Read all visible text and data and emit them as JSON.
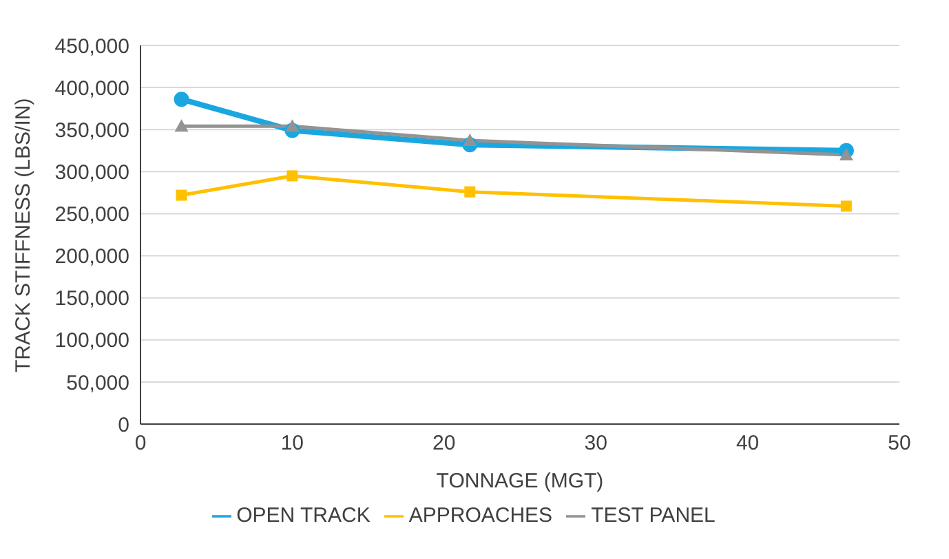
{
  "chart_data": {
    "type": "line",
    "xlabel": "TONNAGE (MGT)",
    "ylabel": "TRACK STIFFNESS (LBS/IN)",
    "x": [
      2.7,
      10,
      21.7,
      46.5
    ],
    "series": [
      {
        "name": "OPEN TRACK",
        "color": "#1aa7e0",
        "marker": "circle",
        "values": [
          386000,
          349000,
          332000,
          325000
        ]
      },
      {
        "name": "APPROACHES",
        "color": "#ffc000",
        "marker": "square",
        "values": [
          272000,
          295000,
          276000,
          259000
        ]
      },
      {
        "name": "TEST PANEL",
        "color": "#939393",
        "marker": "triangle",
        "values": [
          354000,
          354000,
          337000,
          320000
        ]
      }
    ],
    "xlim": [
      0,
      50
    ],
    "xticks": [
      0,
      10,
      20,
      30,
      40,
      50
    ],
    "ylim": [
      0,
      450000
    ],
    "yticks": [
      0,
      {
        "value": 50000,
        "label": "50,000"
      },
      {
        "value": 100000,
        "label": "100,000"
      },
      {
        "value": 150000,
        "label": "150,000"
      },
      {
        "value": 200000,
        "label": "200,000"
      },
      {
        "value": 250000,
        "label": "250,000"
      },
      {
        "value": 300000,
        "label": "300,000"
      },
      {
        "value": 350000,
        "label": "350,000"
      },
      {
        "value": 400000,
        "label": "400,000"
      },
      {
        "value": 450000,
        "label": "450,000"
      }
    ],
    "grid": "y",
    "legend": "bottom",
    "line_style": "solid"
  }
}
